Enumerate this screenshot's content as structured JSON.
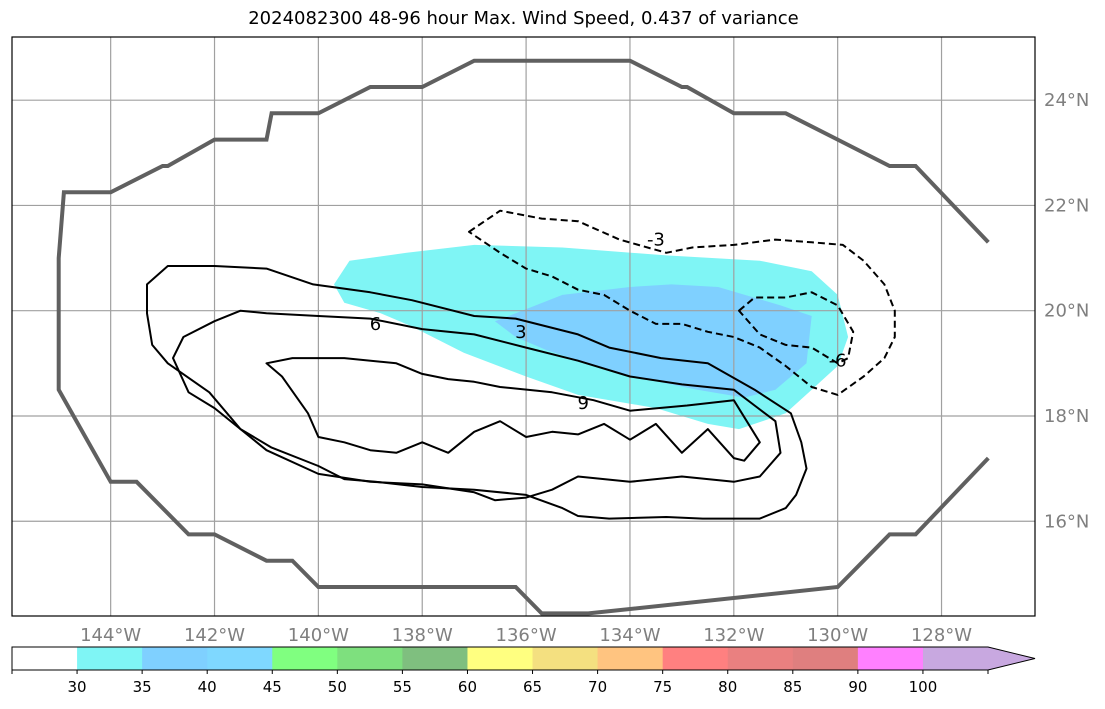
{
  "chart_data": {
    "type": "map",
    "title": "2024082300 48-96 hour Max. Wind Speed, 0.437 of variance",
    "map": {
      "lon_range": [
        -145.9,
        -126.2
      ],
      "lat_range": [
        14.2,
        25.2
      ],
      "lon_ticks": [
        -144,
        -142,
        -140,
        -138,
        -136,
        -134,
        -132,
        -130,
        -128
      ],
      "lon_labels": [
        "144°W",
        "142°W",
        "140°W",
        "138°W",
        "136°W",
        "134°W",
        "132°W",
        "130°W",
        "128°W"
      ],
      "lat_ticks": [
        16,
        18,
        20,
        22,
        24
      ],
      "lat_labels": [
        "16°N",
        "18°N",
        "20°N",
        "22°N",
        "24°N"
      ],
      "grid": true
    },
    "domain_outline": {
      "color": "#606060",
      "lons": [
        -127.1,
        -128.5,
        -129.0,
        -130.0,
        -131.0,
        -132.0,
        -132.9,
        -133.0,
        -134.0,
        -134.9,
        -135.0,
        -136.0,
        -136.9,
        -137.0,
        -138.0,
        -138.9,
        -139.0,
        -140.0,
        -140.9,
        -141.0,
        -142.0,
        -142.9,
        -143.0,
        -144.0,
        -144.9,
        -145.0,
        -145.0,
        -144.0,
        -143.5,
        -142.5,
        -142.0,
        -141.0,
        -140.5,
        -140.0,
        -138.0,
        -136.2,
        -135.7,
        -134.8,
        -130.0,
        -129.0,
        -128.5,
        -127.1
      ],
      "lats": [
        21.3,
        22.75,
        22.75,
        23.25,
        23.75,
        23.75,
        24.25,
        24.25,
        24.75,
        24.75,
        24.75,
        24.75,
        24.75,
        24.75,
        24.25,
        24.25,
        24.25,
        23.75,
        23.75,
        23.25,
        23.25,
        22.75,
        22.75,
        22.25,
        22.25,
        21.0,
        18.5,
        16.75,
        16.75,
        15.75,
        15.75,
        15.25,
        15.25,
        14.75,
        14.75,
        14.75,
        14.25,
        14.25,
        14.75,
        15.75,
        15.75,
        17.2
      ]
    },
    "filled_contours": [
      {
        "level": 30,
        "color": "#7ff5f5",
        "lons": [
          -139.7,
          -139.4,
          -138.3,
          -137.0,
          -135.3,
          -133.3,
          -131.5,
          -130.5,
          -130.0,
          -129.8,
          -130.0,
          -130.5,
          -131.0,
          -131.9,
          -132.5,
          -133.5,
          -135.0,
          -136.0,
          -137.2,
          -138.2,
          -138.8,
          -139.5,
          -139.7
        ],
        "lats": [
          20.5,
          20.95,
          21.1,
          21.25,
          21.2,
          21.05,
          20.95,
          20.75,
          20.3,
          19.5,
          18.95,
          18.5,
          18.05,
          17.75,
          17.85,
          18.15,
          18.4,
          18.75,
          19.2,
          19.7,
          19.95,
          20.15,
          20.5
        ]
      },
      {
        "level": 35,
        "color": "#7fd0ff",
        "lons": [
          -136.2,
          -135.3,
          -134.0,
          -133.2,
          -132.3,
          -131.1,
          -130.5,
          -130.6,
          -131.2,
          -131.8,
          -132.7,
          -134.2,
          -135.6,
          -136.2,
          -136.6,
          -136.2
        ],
        "lats": [
          19.95,
          20.3,
          20.45,
          20.5,
          20.45,
          20.1,
          19.9,
          19.0,
          18.5,
          18.35,
          18.5,
          18.8,
          19.25,
          19.5,
          19.8,
          19.95
        ]
      }
    ],
    "line_contours": [
      {
        "level": 3,
        "style": "solid",
        "color": "#000000",
        "lons": [
          -140.1,
          -139.0,
          -138.2,
          -137.0,
          -136.2,
          -135.0,
          -134.4,
          -133.4,
          -132.5,
          -131.6,
          -130.9,
          -130.7,
          -130.6,
          -130.8,
          -131.0,
          -131.5,
          -132.6,
          -133.3,
          -134.4,
          -135.0,
          -135.3,
          -136.0,
          -137.0,
          -138.0,
          -138.9,
          -139.5,
          -140.0,
          -140.9,
          -141.5,
          -142.1,
          -142.9,
          -143.2,
          -143.3,
          -143.3,
          -142.9,
          -142.0,
          -141.0,
          -140.1
        ],
        "lats": [
          20.5,
          20.35,
          20.2,
          19.9,
          19.85,
          19.55,
          19.3,
          19.1,
          19.0,
          18.5,
          18.05,
          17.5,
          17.0,
          16.5,
          16.25,
          16.05,
          16.05,
          16.08,
          16.05,
          16.1,
          16.25,
          16.5,
          16.6,
          16.65,
          16.75,
          16.8,
          17.05,
          17.4,
          17.75,
          18.45,
          19.0,
          19.35,
          19.95,
          20.5,
          20.85,
          20.85,
          20.8,
          20.5
        ]
      },
      {
        "level": 6,
        "style": "solid",
        "color": "#000000",
        "lons": [
          -141.5,
          -141.0,
          -140.0,
          -139.0,
          -138.0,
          -137.0,
          -136.0,
          -135.0,
          -134.0,
          -133.0,
          -132.0,
          -131.6,
          -131.2,
          -131.1,
          -131.5,
          -132.0,
          -133.0,
          -134.0,
          -135.0,
          -135.5,
          -136.0,
          -136.6,
          -137.0,
          -138.0,
          -139.0,
          -140.0,
          -141.0,
          -142.0,
          -142.5,
          -142.8,
          -142.6,
          -142.0,
          -141.5
        ],
        "lats": [
          20.0,
          19.95,
          19.9,
          19.85,
          19.65,
          19.55,
          19.3,
          19.05,
          18.75,
          18.6,
          18.5,
          18.2,
          17.9,
          17.3,
          16.85,
          16.75,
          16.85,
          16.75,
          16.85,
          16.6,
          16.45,
          16.4,
          16.55,
          16.7,
          16.75,
          16.9,
          17.35,
          18.15,
          18.45,
          19.1,
          19.5,
          19.8,
          20.0
        ]
      },
      {
        "level": 9,
        "style": "solid",
        "color": "#000000",
        "lons": [
          -141.0,
          -140.5,
          -139.5,
          -138.5,
          -138.0,
          -137.5,
          -137.0,
          -136.5,
          -135.5,
          -134.7,
          -134.0,
          -132.9,
          -132.0,
          -131.5,
          -131.8,
          -132.0,
          -132.5,
          -133.0,
          -133.5,
          -134.0,
          -134.5,
          -135.0,
          -135.5,
          -136.0,
          -136.5,
          -137.0,
          -137.5,
          -138.0,
          -138.5,
          -139.0,
          -139.5,
          -140.0,
          -140.2,
          -140.7,
          -141.0
        ],
        "lats": [
          19.0,
          19.1,
          19.1,
          19.0,
          18.8,
          18.7,
          18.65,
          18.55,
          18.45,
          18.3,
          18.1,
          18.2,
          18.3,
          17.5,
          17.15,
          17.2,
          17.75,
          17.3,
          17.85,
          17.55,
          17.85,
          17.65,
          17.7,
          17.6,
          17.9,
          17.7,
          17.3,
          17.5,
          17.3,
          17.35,
          17.5,
          17.6,
          18.05,
          18.75,
          19.0
        ]
      },
      {
        "level": -3,
        "style": "dashed",
        "color": "#000000",
        "lons": [
          -137.1,
          -136.5,
          -135.7,
          -135.0,
          -134.2,
          -133.3,
          -132.8,
          -132.0,
          -131.2,
          -130.5,
          -129.9,
          -129.5,
          -129.1,
          -128.9,
          -128.9,
          -129.1,
          -129.5,
          -130.0,
          -130.5,
          -131.0,
          -131.5,
          -132.0,
          -132.5,
          -133.0,
          -133.5,
          -134.0,
          -134.5,
          -135.0,
          -135.5,
          -136.0,
          -136.5,
          -137.1
        ],
        "lats": [
          21.5,
          21.9,
          21.75,
          21.7,
          21.35,
          21.1,
          21.2,
          21.25,
          21.35,
          21.3,
          21.25,
          20.95,
          20.5,
          20.0,
          19.5,
          19.1,
          18.75,
          18.4,
          18.55,
          18.95,
          19.3,
          19.5,
          19.6,
          19.75,
          19.75,
          20.0,
          20.3,
          20.4,
          20.65,
          20.8,
          21.1,
          21.5
        ]
      },
      {
        "level": -6,
        "style": "dashed",
        "color": "#000000",
        "lons": [
          -131.9,
          -131.6,
          -131.0,
          -130.5,
          -130.0,
          -129.7,
          -129.8,
          -130.0,
          -130.5,
          -131.0,
          -131.5,
          -131.9
        ],
        "lats": [
          20.0,
          20.25,
          20.25,
          20.35,
          20.1,
          19.6,
          19.1,
          19.0,
          19.3,
          19.35,
          19.55,
          20.0
        ]
      }
    ],
    "contour_labels": [
      {
        "text": "6",
        "lon": -138.9,
        "lat": 19.75
      },
      {
        "text": "3",
        "lon": -136.1,
        "lat": 19.6
      },
      {
        "text": "9",
        "lon": -134.9,
        "lat": 18.25
      },
      {
        "text": "-3",
        "lon": -133.5,
        "lat": 21.35
      },
      {
        "text": "-6",
        "lon": -130.0,
        "lat": 19.05
      }
    ],
    "colorbar": {
      "bounds": [
        30,
        35,
        40,
        45,
        50,
        55,
        60,
        65,
        70,
        75,
        80,
        85,
        90,
        100
      ],
      "under_color": "#ffffff",
      "colors": [
        "#7ff5f5",
        "#7fd0ff",
        "#7fd8ff",
        "#80ff80",
        "#7ee07e",
        "#7fbf7f",
        "#ffff80",
        "#f4e080",
        "#ffc480",
        "#ff8080",
        "#ea8080",
        "#df7f7f",
        "#ff80ff",
        "#c8a8e0"
      ],
      "over_color": "#c8a8e0",
      "tick_labels": [
        "30",
        "35",
        "40",
        "45",
        "50",
        "55",
        "60",
        "65",
        "70",
        "75",
        "80",
        "85",
        "90",
        "100"
      ],
      "extend": "max"
    }
  }
}
